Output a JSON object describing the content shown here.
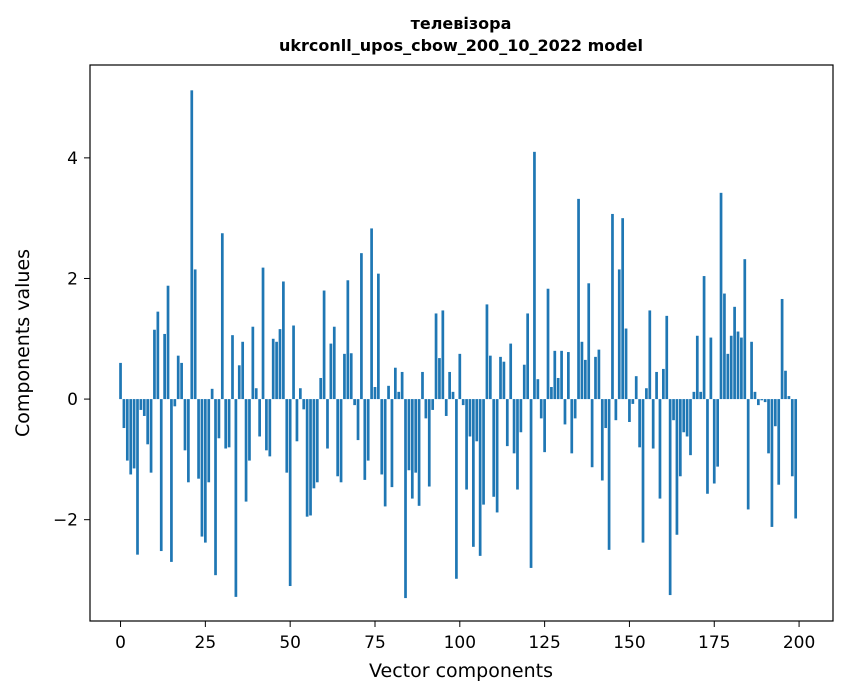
{
  "chart_data": {
    "type": "bar",
    "title_lines": [
      "телевізора",
      "ukrconll_upos_cbow_200_10_2022 model"
    ],
    "xlabel": "Vector components",
    "ylabel": "Components values",
    "xlim": [
      -9,
      210
    ],
    "ylim": [
      -3.68,
      5.54
    ],
    "xticks": [
      0,
      25,
      50,
      75,
      100,
      125,
      150,
      175,
      200
    ],
    "yticks": [
      -2,
      0,
      2,
      4
    ],
    "ytick_labels": [
      "−2",
      "0",
      "2",
      "4"
    ],
    "bar_color": "#1f77b4",
    "grid": false,
    "values": [
      0.6,
      -0.48,
      -1.02,
      -1.25,
      -1.15,
      -2.58,
      -0.18,
      -0.28,
      -0.75,
      -1.22,
      1.15,
      1.45,
      -2.52,
      1.08,
      1.88,
      -2.7,
      -0.12,
      0.72,
      0.6,
      -0.85,
      -1.38,
      5.12,
      2.15,
      -1.32,
      -2.28,
      -2.38,
      -1.38,
      0.17,
      -2.92,
      -0.65,
      2.75,
      -0.82,
      -0.8,
      1.06,
      -3.28,
      0.56,
      0.95,
      -1.7,
      -1.02,
      1.2,
      0.18,
      -0.62,
      2.18,
      -0.85,
      -0.95,
      1.0,
      0.95,
      1.16,
      1.95,
      -1.22,
      -3.1,
      1.22,
      -0.7,
      0.18,
      -0.17,
      -1.95,
      -1.93,
      -1.48,
      -1.38,
      0.35,
      1.8,
      -0.82,
      0.92,
      1.2,
      -1.28,
      -1.38,
      0.75,
      1.97,
      0.76,
      -0.1,
      -0.68,
      2.42,
      -1.34,
      -1.02,
      2.83,
      0.2,
      2.08,
      -1.25,
      -1.78,
      0.22,
      -1.46,
      0.52,
      0.12,
      0.45,
      -3.3,
      -1.18,
      -1.65,
      -1.22,
      -1.77,
      0.45,
      -0.32,
      -1.45,
      -0.18,
      1.42,
      0.68,
      1.47,
      -0.28,
      0.45,
      0.12,
      -2.98,
      0.75,
      -0.1,
      -1.5,
      -0.62,
      -2.45,
      -0.7,
      -2.6,
      -1.75,
      1.57,
      0.72,
      -1.62,
      -1.88,
      0.7,
      0.62,
      -0.78,
      0.92,
      -0.9,
      -1.5,
      -0.55,
      0.57,
      1.42,
      -2.8,
      4.1,
      0.33,
      -0.32,
      -0.88,
      1.83,
      0.2,
      0.8,
      0.35,
      0.8,
      -0.42,
      0.78,
      -0.9,
      -0.32,
      3.32,
      0.95,
      0.65,
      1.92,
      -1.13,
      0.7,
      0.82,
      -1.35,
      -0.48,
      -2.5,
      3.07,
      -0.35,
      2.15,
      3.0,
      1.17,
      -0.38,
      -0.08,
      0.38,
      -0.8,
      -2.38,
      0.18,
      1.47,
      -0.82,
      0.45,
      -1.65,
      0.5,
      1.38,
      -3.25,
      -0.35,
      -2.25,
      -1.28,
      -0.55,
      -0.62,
      -0.93,
      0.12,
      1.05,
      0.12,
      2.04,
      -1.57,
      1.02,
      -1.4,
      -1.12,
      3.42,
      1.75,
      0.75,
      1.05,
      1.53,
      1.12,
      1.02,
      2.32,
      -1.83,
      0.95,
      0.12,
      -0.1,
      -0.02,
      -0.05,
      -0.9,
      -2.12,
      -0.45,
      -1.42,
      1.66,
      0.47,
      0.05,
      -1.28,
      -1.98
    ]
  }
}
